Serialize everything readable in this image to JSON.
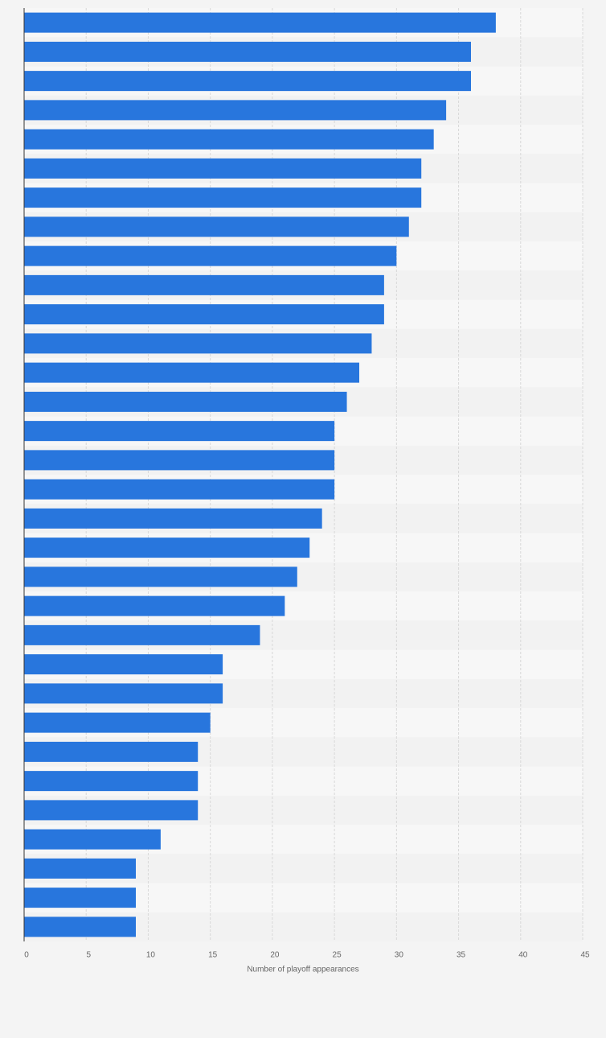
{
  "chart_data": {
    "type": "hbar",
    "x_label": "Number of playoff appearances",
    "categories": [
      null,
      null,
      null,
      null,
      null,
      null,
      null,
      null,
      null,
      null,
      null,
      null,
      null,
      null,
      null,
      null,
      null,
      null,
      null,
      null,
      null,
      null,
      null,
      null,
      null,
      null,
      null,
      null,
      null,
      null,
      null,
      null
    ],
    "values": [
      38,
      36,
      36,
      34,
      33,
      32,
      32,
      31,
      30,
      29,
      29,
      28,
      27,
      26,
      25,
      25,
      25,
      24,
      23,
      22,
      21,
      19,
      16,
      16,
      15,
      14,
      14,
      14,
      11,
      9,
      9,
      9
    ],
    "color": "#2876dd",
    "xlim": [
      0,
      45
    ],
    "xticks": [
      0,
      5,
      10,
      15,
      20,
      25,
      30,
      35,
      40,
      45
    ],
    "grid": true
  }
}
